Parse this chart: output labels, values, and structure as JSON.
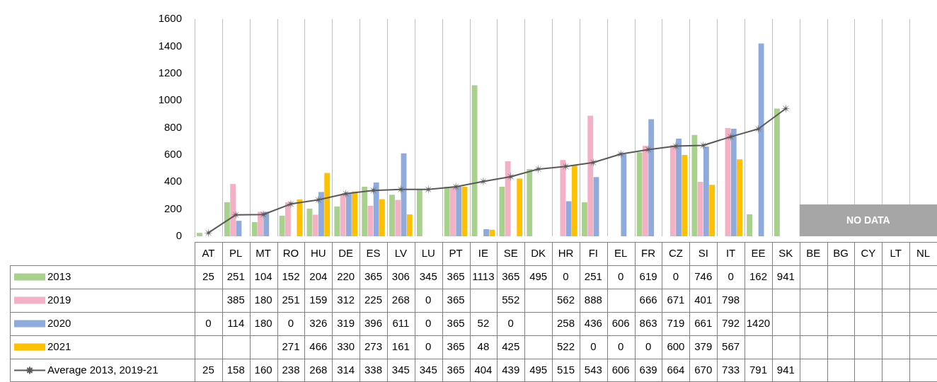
{
  "chart_data": {
    "type": "bar",
    "categories": [
      "AT",
      "PL",
      "MT",
      "RO",
      "HU",
      "DE",
      "ES",
      "LV",
      "LU",
      "PT",
      "IE",
      "SE",
      "DK",
      "HR",
      "FI",
      "EL",
      "FR",
      "CZ",
      "SI",
      "IT",
      "EE",
      "SK",
      "BE",
      "BG",
      "CY",
      "LT",
      "NL"
    ],
    "series": [
      {
        "name": "2013",
        "color": "#a9d18e",
        "values": [
          25,
          251,
          104,
          152,
          204,
          220,
          365,
          306,
          345,
          365,
          1113,
          365,
          495,
          0,
          251,
          0,
          619,
          0,
          746,
          0,
          162,
          941,
          null,
          null,
          null,
          null,
          null
        ]
      },
      {
        "name": "2019",
        "color": "#f4b1c6",
        "values": [
          null,
          385,
          180,
          251,
          159,
          312,
          225,
          268,
          0,
          365,
          null,
          552,
          null,
          562,
          888,
          null,
          666,
          671,
          401,
          798,
          null,
          null,
          null,
          null,
          null,
          null,
          null
        ]
      },
      {
        "name": "2020",
        "color": "#8faadc",
        "values": [
          0,
          114,
          180,
          0,
          326,
          319,
          396,
          611,
          0,
          365,
          52,
          0,
          null,
          258,
          436,
          606,
          863,
          719,
          661,
          792,
          1420,
          null,
          null,
          null,
          null,
          null,
          null
        ]
      },
      {
        "name": "2021",
        "color": "#ffc000",
        "values": [
          null,
          null,
          null,
          271,
          466,
          330,
          273,
          161,
          0,
          365,
          48,
          425,
          null,
          522,
          0,
          0,
          0,
          600,
          379,
          567,
          null,
          null,
          null,
          null,
          null,
          null,
          null
        ]
      },
      {
        "name": "Average 2013, 2019-21",
        "type": "line",
        "color": "#595959",
        "marker": "star",
        "line_style": "solid",
        "values": [
          25,
          158,
          160,
          238,
          268,
          314,
          338,
          345,
          345,
          365,
          404,
          439,
          495,
          515,
          543,
          606,
          639,
          664,
          670,
          733,
          791,
          941,
          null,
          null,
          null,
          null,
          null
        ]
      }
    ],
    "ylim": [
      0,
      1600
    ],
    "yticks": [
      0,
      200,
      400,
      600,
      800,
      1000,
      1200,
      1400,
      1600
    ],
    "grid": "x",
    "legend": "bottom",
    "data_labels": true,
    "bands": [
      {
        "axis": "x",
        "from": "BE",
        "to": "NL",
        "label": "NO DATA",
        "color": "#a6a6a6"
      }
    ]
  }
}
